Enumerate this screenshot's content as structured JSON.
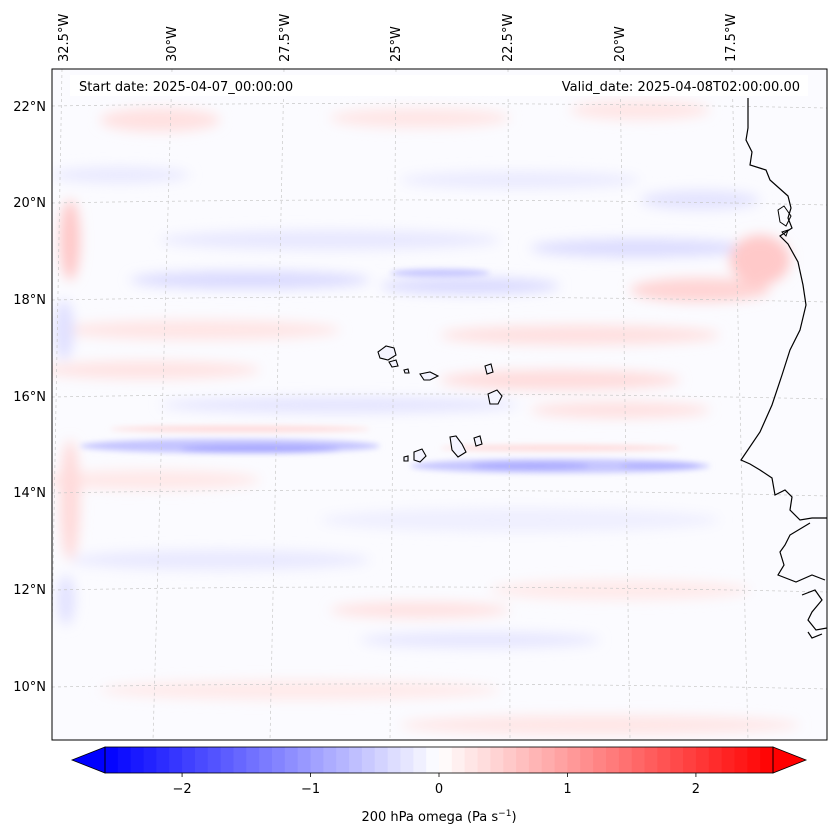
{
  "header": {
    "start_label": "Start date: 2025-04-07_00:00:00",
    "valid_label": "Valid_date: 2025-04-08T02:00:00.00"
  },
  "map": {
    "lon_labels": [
      "32.5°W",
      "30°W",
      "27.5°W",
      "25°W",
      "22.5°W",
      "20°W",
      "17.5°W"
    ],
    "lat_labels": [
      "22°N",
      "20°N",
      "18°N",
      "16°N",
      "14°N",
      "12°N",
      "10°N"
    ],
    "features": [
      "coastline-africa",
      "cape-verde-islands"
    ]
  },
  "colorbar": {
    "tick_values": [
      -2,
      -1,
      0,
      1,
      2
    ],
    "tick_labels": [
      "−2",
      "−1",
      "0",
      "1",
      "2"
    ],
    "title": "200 hPa omega (Pa s",
    "title_sup": "−1",
    "title_end": ")",
    "range": [
      -2.6,
      2.6
    ],
    "colors": {
      "min": "#0000ff",
      "mid": "#ffffff",
      "max": "#ff0000"
    }
  }
}
